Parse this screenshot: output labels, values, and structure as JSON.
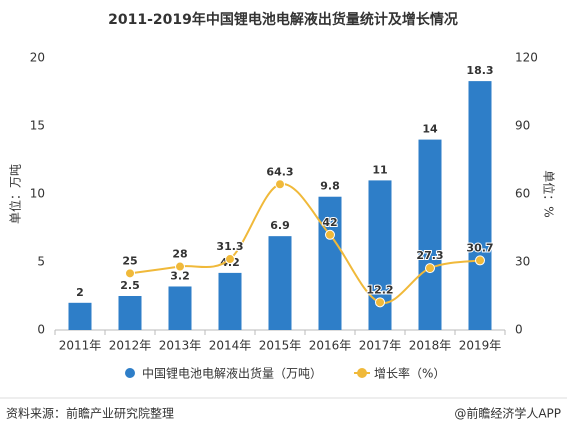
{
  "chart_data": {
    "type": "bar-line",
    "title": "2011-2019年中国锂电池电解液出货量统计及增长情况",
    "categories": [
      "2011年",
      "2012年",
      "2013年",
      "2014年",
      "2015年",
      "2016年",
      "2017年",
      "2018年",
      "2019年"
    ],
    "series": [
      {
        "name": "中国锂电池电解液出货量（万吨）",
        "type": "bar",
        "color": "#2e7ec8",
        "values": [
          2,
          2.5,
          3.2,
          4.2,
          6.9,
          9.8,
          11,
          14,
          18.3
        ]
      },
      {
        "name": "增长率（%）",
        "type": "line",
        "axis": "y2",
        "color": "#f0b93a",
        "values": [
          null,
          25,
          28,
          31.3,
          64.3,
          42,
          12.2,
          27.3,
          30.7
        ]
      }
    ],
    "ylabel": "单位：万吨",
    "y2label": "单位：%",
    "ylim": [
      0,
      20
    ],
    "yticks": [
      0,
      5,
      10,
      15,
      20
    ],
    "y2lim": [
      0,
      120
    ],
    "y2ticks": [
      0,
      30,
      60,
      90,
      120
    ],
    "legend": "bottom",
    "source": "资料来源：前瞻产业研究院整理",
    "brand": "@前瞻经济学人APP"
  }
}
